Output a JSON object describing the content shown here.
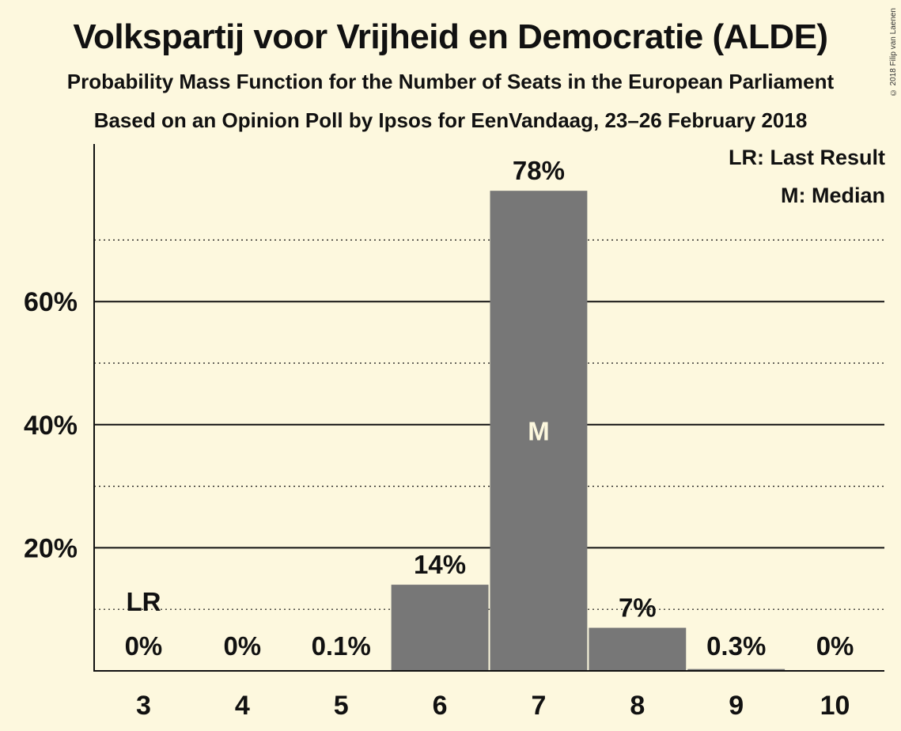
{
  "header": {
    "title": "Volkspartij voor Vrijheid en Democratie (ALDE)",
    "subtitle": "Probability Mass Function for the Number of Seats in the European Parliament",
    "subtitle2": "Based on an Opinion Poll by Ipsos for EenVandaag, 23–26 February 2018",
    "copyright": "© 2018 Filip van Laenen"
  },
  "legend": {
    "last_result": "LR: Last Result",
    "median": "M: Median"
  },
  "colors": {
    "background": "#fdf8de",
    "bar": "#777777",
    "text": "#111111"
  },
  "chart_data": {
    "type": "bar",
    "title": "Volkspartij voor Vrijheid en Democratie (ALDE)",
    "xlabel": "",
    "ylabel": "",
    "categories": [
      "3",
      "4",
      "5",
      "6",
      "7",
      "8",
      "9",
      "10"
    ],
    "values": [
      0,
      0,
      0.1,
      14,
      78,
      7,
      0.3,
      0
    ],
    "value_labels": [
      "0%",
      "0%",
      "0.1%",
      "14%",
      "78%",
      "7%",
      "0.3%",
      "0%"
    ],
    "ylim": [
      0,
      80
    ],
    "y_major_ticks": [
      20,
      40,
      60
    ],
    "y_tick_labels": [
      "20%",
      "40%",
      "60%"
    ],
    "y_minor_gridlines": [
      10,
      30,
      50,
      70
    ],
    "last_result_category": "3",
    "last_result_marker": "LR",
    "median_category": "7",
    "median_marker": "M",
    "grid": true,
    "legend_position": "top-right"
  }
}
